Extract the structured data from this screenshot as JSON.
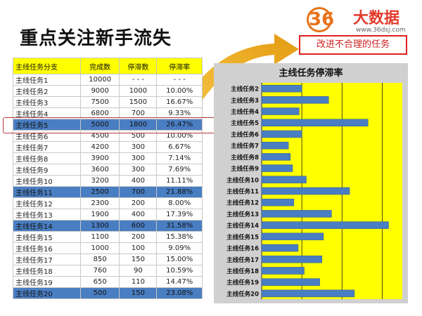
{
  "page": {
    "title": "重点关注新手流失",
    "callout": "改进不合理的任务"
  },
  "logo": {
    "numerals": "36",
    "brand": "大数据",
    "url": "www.36dsj.com"
  },
  "table": {
    "headers": [
      "主线任务分支",
      "完成数",
      "停滞数",
      "停滞率"
    ],
    "rows": [
      {
        "name": "主线任务1",
        "done": "10000",
        "stuck": "- - -",
        "rate": "- - -",
        "hl": false
      },
      {
        "name": "主线任务2",
        "done": "9000",
        "stuck": "1000",
        "rate": "10.00%",
        "hl": false
      },
      {
        "name": "主线任务3",
        "done": "7500",
        "stuck": "1500",
        "rate": "16.67%",
        "hl": false
      },
      {
        "name": "主线任务4",
        "done": "6800",
        "stuck": "700",
        "rate": "9.33%",
        "hl": false
      },
      {
        "name": "主线任务5",
        "done": "5000",
        "stuck": "1800",
        "rate": "26.47%",
        "hl": true
      },
      {
        "name": "主线任务6",
        "done": "4500",
        "stuck": "500",
        "rate": "10.00%",
        "hl": false
      },
      {
        "name": "主线任务7",
        "done": "4200",
        "stuck": "300",
        "rate": "6.67%",
        "hl": false
      },
      {
        "name": "主线任务8",
        "done": "3900",
        "stuck": "300",
        "rate": "7.14%",
        "hl": false
      },
      {
        "name": "主线任务9",
        "done": "3600",
        "stuck": "300",
        "rate": "7.69%",
        "hl": false
      },
      {
        "name": "主线任务10",
        "done": "3200",
        "stuck": "400",
        "rate": "11.11%",
        "hl": false
      },
      {
        "name": "主线任务11",
        "done": "2500",
        "stuck": "700",
        "rate": "21.88%",
        "hl": true
      },
      {
        "name": "主线任务12",
        "done": "2300",
        "stuck": "200",
        "rate": "8.00%",
        "hl": false
      },
      {
        "name": "主线任务13",
        "done": "1900",
        "stuck": "400",
        "rate": "17.39%",
        "hl": false
      },
      {
        "name": "主线任务14",
        "done": "1300",
        "stuck": "600",
        "rate": "31.58%",
        "hl": true
      },
      {
        "name": "主线任务15",
        "done": "1100",
        "stuck": "200",
        "rate": "15.38%",
        "hl": false
      },
      {
        "name": "主线任务16",
        "done": "1000",
        "stuck": "100",
        "rate": "9.09%",
        "hl": false
      },
      {
        "name": "主线任务17",
        "done": "850",
        "stuck": "150",
        "rate": "15.00%",
        "hl": false
      },
      {
        "name": "主线任务18",
        "done": "760",
        "stuck": "90",
        "rate": "10.59%",
        "hl": false
      },
      {
        "name": "主线任务19",
        "done": "650",
        "stuck": "110",
        "rate": "14.47%",
        "hl": false
      },
      {
        "name": "主线任务20",
        "done": "500",
        "stuck": "150",
        "rate": "23.08%",
        "hl": true
      }
    ]
  },
  "chart_data": {
    "type": "bar",
    "orientation": "horizontal",
    "title": "主线任务停滞率",
    "categories": [
      "主线任务2",
      "主线任务3",
      "主线任务4",
      "主线任务5",
      "主线任务6",
      "主线任务7",
      "主线任务8",
      "主线任务9",
      "主线任务10",
      "主线任务11",
      "主线任务12",
      "主线任务13",
      "主线任务14",
      "主线任务15",
      "主线任务16",
      "主线任务17",
      "主线任务18",
      "主线任务19",
      "主线任务20"
    ],
    "values": [
      10.0,
      16.67,
      9.33,
      26.47,
      10.0,
      6.67,
      7.14,
      7.69,
      11.11,
      21.88,
      8.0,
      17.39,
      31.58,
      15.38,
      9.09,
      15.0,
      10.59,
      14.47,
      23.08
    ],
    "xlim": [
      0,
      35
    ],
    "grid": true,
    "colors": {
      "plot_bg": "#ffff00",
      "bar": "#4a7ec2",
      "panel": "#d0d0d0"
    }
  }
}
